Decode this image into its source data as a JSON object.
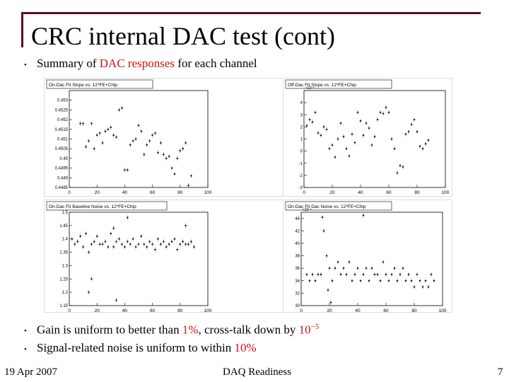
{
  "slide": {
    "title": "CRC internal DAC test (cont)",
    "intro_bullet": {
      "pre": "Summary of ",
      "highlight": "DAC responses",
      "post": " for each channel"
    },
    "bullets": [
      {
        "pre": "Gain is uniform to better than ",
        "highlight": "1%",
        "mid": ", cross-talk down by ",
        "tail": "10",
        "sup": "−5"
      },
      {
        "pre": "Signal-related noise is uniform to within ",
        "highlight": "10%"
      }
    ],
    "footer": {
      "date": "19 Apr 2007",
      "center": "DAQ Readiness",
      "page": "7"
    }
  },
  "chart_data": [
    {
      "type": "scatter",
      "title": "On-Dac Fit Slope vs. 12*FE+Chip",
      "ylim": [
        0.4485,
        0.4535
      ],
      "xlim": [
        0,
        100
      ],
      "xticks": [
        "0",
        "20",
        "40",
        "60",
        "80",
        "100"
      ],
      "yticks": [
        "0.4485",
        "0.449",
        "0.4495",
        "0.45",
        "0.4505",
        "0.451",
        "0.4515",
        "0.452",
        "0.4525",
        "0.453"
      ],
      "points": [
        [
          8,
          0.4518
        ],
        [
          10,
          0.4518
        ],
        [
          12,
          0.4506
        ],
        [
          14,
          0.4509
        ],
        [
          16,
          0.4518
        ],
        [
          18,
          0.4505
        ],
        [
          20,
          0.4512
        ],
        [
          22,
          0.4513
        ],
        [
          24,
          0.4508
        ],
        [
          26,
          0.4514
        ],
        [
          28,
          0.4515
        ],
        [
          30,
          0.4516
        ],
        [
          32,
          0.4512
        ],
        [
          34,
          0.4511
        ],
        [
          36,
          0.4525
        ],
        [
          38,
          0.4526
        ],
        [
          40,
          0.4494
        ],
        [
          42,
          0.4494
        ],
        [
          44,
          0.4507
        ],
        [
          46,
          0.4509
        ],
        [
          48,
          0.451
        ],
        [
          50,
          0.4517
        ],
        [
          52,
          0.4514
        ],
        [
          54,
          0.4502
        ],
        [
          56,
          0.4507
        ],
        [
          58,
          0.4509
        ],
        [
          60,
          0.4512
        ],
        [
          62,
          0.4513
        ],
        [
          64,
          0.4503
        ],
        [
          66,
          0.4508
        ],
        [
          68,
          0.4502
        ],
        [
          70,
          0.45
        ],
        [
          72,
          0.4501
        ],
        [
          74,
          0.4495
        ],
        [
          76,
          0.4492
        ],
        [
          78,
          0.45
        ],
        [
          80,
          0.4504
        ],
        [
          82,
          0.4505
        ],
        [
          84,
          0.4508
        ],
        [
          86,
          0.4486
        ],
        [
          88,
          0.4491
        ]
      ]
    },
    {
      "type": "scatter",
      "title": "Off-Dac Fit Slope vs. 12*FE+Chip",
      "exponent": "×10⁻⁵",
      "ylim": [
        -3,
        5
      ],
      "xlim": [
        0,
        100
      ],
      "xticks": [
        "0",
        "20",
        "40",
        "60",
        "80",
        "100"
      ],
      "yticks": [
        "-3",
        "-2",
        "-1",
        "0",
        "1",
        "2",
        "3",
        "4"
      ],
      "points": [
        [
          2,
          2.1
        ],
        [
          4,
          2.6
        ],
        [
          6,
          2.4
        ],
        [
          8,
          3.2
        ],
        [
          10,
          1.5
        ],
        [
          12,
          1.3
        ],
        [
          14,
          2.0
        ],
        [
          16,
          1.8
        ],
        [
          18,
          0.2
        ],
        [
          20,
          0.5
        ],
        [
          22,
          -0.5
        ],
        [
          24,
          1.0
        ],
        [
          26,
          2.3
        ],
        [
          28,
          1.2
        ],
        [
          30,
          0.2
        ],
        [
          32,
          -0.4
        ],
        [
          34,
          1.4
        ],
        [
          36,
          0.7
        ],
        [
          38,
          3.2
        ],
        [
          40,
          2.5
        ],
        [
          42,
          1.3
        ],
        [
          44,
          2.3
        ],
        [
          46,
          1.9
        ],
        [
          48,
          0.5
        ],
        [
          50,
          1.2
        ],
        [
          52,
          2.6
        ],
        [
          54,
          3.2
        ],
        [
          56,
          3.1
        ],
        [
          58,
          3.6
        ],
        [
          60,
          3.2
        ],
        [
          62,
          1.0
        ],
        [
          64,
          0.2
        ],
        [
          66,
          -1.8
        ],
        [
          68,
          -1.2
        ],
        [
          70,
          -1.3
        ],
        [
          72,
          1.4
        ],
        [
          74,
          1.6
        ],
        [
          76,
          2.2
        ],
        [
          78,
          2.6
        ],
        [
          80,
          1.6
        ],
        [
          82,
          0.4
        ],
        [
          84,
          0.2
        ],
        [
          86,
          0.6
        ],
        [
          88,
          0.9
        ]
      ]
    },
    {
      "type": "scatter",
      "title": "On-Dac Fit Baseline Noise vs. 12*FE+Chip",
      "ylim": [
        1.15,
        1.5
      ],
      "xlim": [
        0,
        100
      ],
      "xticks": [
        "0",
        "20",
        "40",
        "60",
        "80",
        "100"
      ],
      "yticks": [
        "1.15",
        "1.2",
        "1.25",
        "1.3",
        "1.35",
        "1.4",
        "1.45",
        "1.5"
      ],
      "points": [
        [
          2,
          1.4
        ],
        [
          4,
          1.38
        ],
        [
          6,
          1.39
        ],
        [
          8,
          1.41
        ],
        [
          10,
          1.37
        ],
        [
          12,
          1.42
        ],
        [
          14,
          1.35
        ],
        [
          16,
          1.38
        ],
        [
          18,
          1.39
        ],
        [
          20,
          1.41
        ],
        [
          22,
          1.38
        ],
        [
          24,
          1.38
        ],
        [
          26,
          1.39
        ],
        [
          28,
          1.37
        ],
        [
          30,
          1.42
        ],
        [
          32,
          1.37
        ],
        [
          34,
          1.39
        ],
        [
          36,
          1.4
        ],
        [
          38,
          1.38
        ],
        [
          40,
          1.37
        ],
        [
          42,
          1.39
        ],
        [
          44,
          1.38
        ],
        [
          46,
          1.4
        ],
        [
          48,
          1.37
        ],
        [
          50,
          1.38
        ],
        [
          52,
          1.41
        ],
        [
          54,
          1.38
        ],
        [
          56,
          1.37
        ],
        [
          58,
          1.39
        ],
        [
          60,
          1.38
        ],
        [
          62,
          1.36
        ],
        [
          64,
          1.4
        ],
        [
          66,
          1.38
        ],
        [
          68,
          1.39
        ],
        [
          70,
          1.37
        ],
        [
          72,
          1.38
        ],
        [
          74,
          1.39
        ],
        [
          76,
          1.4
        ],
        [
          78,
          1.36
        ],
        [
          80,
          1.38
        ],
        [
          82,
          1.39
        ],
        [
          84,
          1.38
        ],
        [
          86,
          1.38
        ],
        [
          88,
          1.39
        ],
        [
          90,
          1.37
        ],
        [
          14,
          1.2
        ],
        [
          16,
          1.25
        ],
        [
          32,
          1.44
        ],
        [
          34,
          1.17
        ],
        [
          42,
          1.48
        ],
        [
          84,
          1.45
        ]
      ]
    },
    {
      "type": "scatter",
      "title": "On-Dac Fit Dac Noise vs. 12*FE+Chip",
      "exponent": "×10⁻⁵",
      "ylim": [
        30,
        45
      ],
      "xlim": [
        0,
        100
      ],
      "xticks": [
        "0",
        "20",
        "40",
        "60",
        "80",
        "100"
      ],
      "yticks": [
        "30",
        "32",
        "34",
        "36",
        "38",
        "40",
        "42",
        "44"
      ],
      "points": [
        [
          4,
          35
        ],
        [
          6,
          34
        ],
        [
          8,
          35
        ],
        [
          10,
          34
        ],
        [
          12,
          35
        ],
        [
          14,
          35
        ],
        [
          16,
          42
        ],
        [
          18,
          38
        ],
        [
          20,
          36
        ],
        [
          22,
          34
        ],
        [
          24,
          36
        ],
        [
          26,
          37
        ],
        [
          28,
          35
        ],
        [
          30,
          36
        ],
        [
          32,
          35
        ],
        [
          34,
          37
        ],
        [
          36,
          34
        ],
        [
          38,
          35
        ],
        [
          40,
          36
        ],
        [
          42,
          34
        ],
        [
          44,
          35
        ],
        [
          46,
          36
        ],
        [
          48,
          34
        ],
        [
          50,
          36
        ],
        [
          52,
          35
        ],
        [
          54,
          35
        ],
        [
          56,
          34
        ],
        [
          58,
          37
        ],
        [
          60,
          35
        ],
        [
          62,
          34
        ],
        [
          64,
          35
        ],
        [
          66,
          36
        ],
        [
          68,
          34
        ],
        [
          70,
          35
        ],
        [
          72,
          36
        ],
        [
          74,
          34
        ],
        [
          76,
          35
        ],
        [
          78,
          34
        ],
        [
          80,
          33
        ],
        [
          82,
          35
        ],
        [
          84,
          34
        ],
        [
          86,
          33
        ],
        [
          88,
          34
        ],
        [
          90,
          33
        ],
        [
          92,
          35
        ],
        [
          94,
          34
        ],
        [
          15,
          44.2
        ],
        [
          44,
          44.5
        ],
        [
          19,
          32.5
        ],
        [
          21,
          30.5
        ]
      ]
    }
  ]
}
